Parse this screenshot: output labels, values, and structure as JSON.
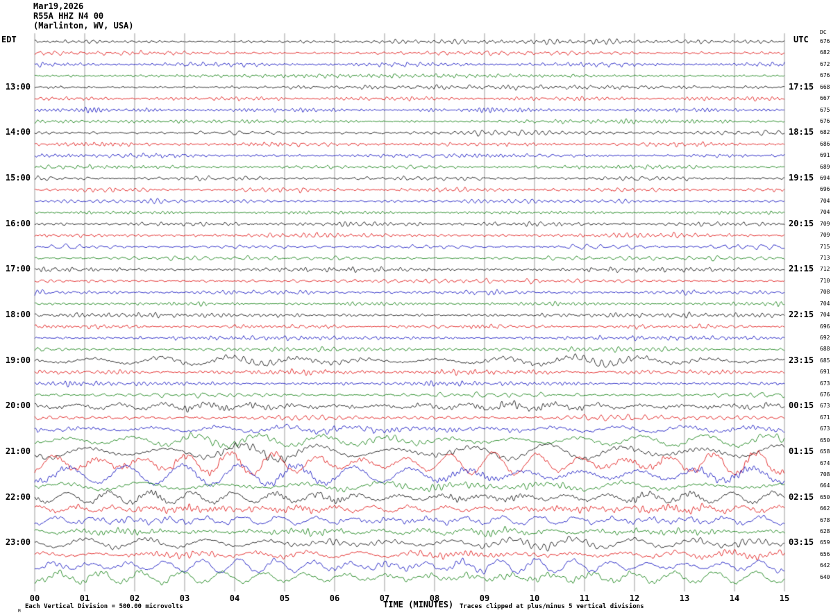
{
  "header": {
    "date": "Mar19,2026",
    "station": "R55A HHZ N4 00",
    "location": "(Marlinton, WV, USA)"
  },
  "axes": {
    "left_header": "EDT",
    "right_header": "UTC",
    "dc_header": "DC",
    "x_axis_label": "TIME (MINUTES)",
    "x_ticks": [
      "00",
      "01",
      "02",
      "03",
      "04",
      "05",
      "06",
      "07",
      "08",
      "09",
      "10",
      "11",
      "12",
      "13",
      "14",
      "15"
    ]
  },
  "footer": {
    "mark": "M",
    "left": "Each Vertical Division =  500.00 microvolts",
    "right": "Traces clipped at plus/minus 5 vertical divisions"
  },
  "chart_data": {
    "type": "line",
    "title": "R55A HHZ N4 00 (Marlinton, WV, USA) helicorder, Mar19,2026",
    "xlabel": "TIME (MINUTES)",
    "x_range_minutes": [
      0,
      15
    ],
    "minutes_per_row": 15,
    "rows_count": 48,
    "grid": true,
    "colors": {
      "black": "#000000",
      "red": "#dd0000",
      "blue": "#0000bb",
      "green": "#007700"
    },
    "row_color_cycle": [
      "black",
      "red",
      "blue",
      "green"
    ],
    "rows": [
      {
        "edt": "",
        "utc": "",
        "dc": 676,
        "amp": 1.0
      },
      {
        "edt": "",
        "utc": "",
        "dc": 682,
        "amp": 0.9
      },
      {
        "edt": "",
        "utc": "",
        "dc": 672,
        "amp": 0.9
      },
      {
        "edt": "",
        "utc": "",
        "dc": 676,
        "amp": 0.8
      },
      {
        "edt": "13:00",
        "utc": "17:15",
        "dc": 668,
        "amp": 0.9
      },
      {
        "edt": "",
        "utc": "",
        "dc": 667,
        "amp": 0.9
      },
      {
        "edt": "",
        "utc": "",
        "dc": 675,
        "amp": 0.9
      },
      {
        "edt": "",
        "utc": "",
        "dc": 676,
        "amp": 0.8
      },
      {
        "edt": "14:00",
        "utc": "18:15",
        "dc": 682,
        "amp": 1.0
      },
      {
        "edt": "",
        "utc": "",
        "dc": 686,
        "amp": 0.9
      },
      {
        "edt": "",
        "utc": "",
        "dc": 691,
        "amp": 0.9
      },
      {
        "edt": "",
        "utc": "",
        "dc": 689,
        "amp": 0.8
      },
      {
        "edt": "15:00",
        "utc": "19:15",
        "dc": 694,
        "amp": 0.9
      },
      {
        "edt": "",
        "utc": "",
        "dc": 696,
        "amp": 0.9
      },
      {
        "edt": "",
        "utc": "",
        "dc": 704,
        "amp": 0.9
      },
      {
        "edt": "",
        "utc": "",
        "dc": 704,
        "amp": 0.8
      },
      {
        "edt": "16:00",
        "utc": "20:15",
        "dc": 709,
        "amp": 1.0
      },
      {
        "edt": "",
        "utc": "",
        "dc": 709,
        "amp": 1.0
      },
      {
        "edt": "",
        "utc": "",
        "dc": 715,
        "amp": 1.0
      },
      {
        "edt": "",
        "utc": "",
        "dc": 713,
        "amp": 0.9
      },
      {
        "edt": "17:00",
        "utc": "21:15",
        "dc": 712,
        "amp": 1.0
      },
      {
        "edt": "",
        "utc": "",
        "dc": 710,
        "amp": 0.9
      },
      {
        "edt": "",
        "utc": "",
        "dc": 708,
        "amp": 0.9
      },
      {
        "edt": "",
        "utc": "",
        "dc": 704,
        "amp": 0.8
      },
      {
        "edt": "18:00",
        "utc": "22:15",
        "dc": 704,
        "amp": 1.0
      },
      {
        "edt": "",
        "utc": "",
        "dc": 696,
        "amp": 0.9
      },
      {
        "edt": "",
        "utc": "",
        "dc": 692,
        "amp": 0.9
      },
      {
        "edt": "",
        "utc": "",
        "dc": 688,
        "amp": 0.9
      },
      {
        "edt": "19:00",
        "utc": "23:15",
        "dc": 685,
        "amp": 1.7
      },
      {
        "edt": "",
        "utc": "",
        "dc": 691,
        "amp": 1.1
      },
      {
        "edt": "",
        "utc": "",
        "dc": 673,
        "amp": 1.0
      },
      {
        "edt": "",
        "utc": "",
        "dc": 676,
        "amp": 1.0
      },
      {
        "edt": "20:00",
        "utc": "00:15",
        "dc": 673,
        "amp": 1.5
      },
      {
        "edt": "",
        "utc": "",
        "dc": 671,
        "amp": 1.1
      },
      {
        "edt": "",
        "utc": "",
        "dc": 673,
        "amp": 1.5
      },
      {
        "edt": "",
        "utc": "",
        "dc": 650,
        "amp": 2.0
      },
      {
        "edt": "21:00",
        "utc": "01:15",
        "dc": 658,
        "amp": 2.4
      },
      {
        "edt": "",
        "utc": "",
        "dc": 674,
        "amp": 3.0
      },
      {
        "edt": "",
        "utc": "",
        "dc": 708,
        "amp": 2.8
      },
      {
        "edt": "",
        "utc": "",
        "dc": 664,
        "amp": 1.7
      },
      {
        "edt": "22:00",
        "utc": "02:15",
        "dc": 650,
        "amp": 2.0
      },
      {
        "edt": "",
        "utc": "",
        "dc": 662,
        "amp": 1.5
      },
      {
        "edt": "",
        "utc": "",
        "dc": 678,
        "amp": 1.7
      },
      {
        "edt": "",
        "utc": "",
        "dc": 628,
        "amp": 1.4
      },
      {
        "edt": "23:00",
        "utc": "03:15",
        "dc": 659,
        "amp": 1.8
      },
      {
        "edt": "",
        "utc": "",
        "dc": 656,
        "amp": 1.5
      },
      {
        "edt": "",
        "utc": "",
        "dc": 642,
        "amp": 2.2
      },
      {
        "edt": "",
        "utc": "",
        "dc": 640,
        "amp": 2.0
      }
    ]
  }
}
